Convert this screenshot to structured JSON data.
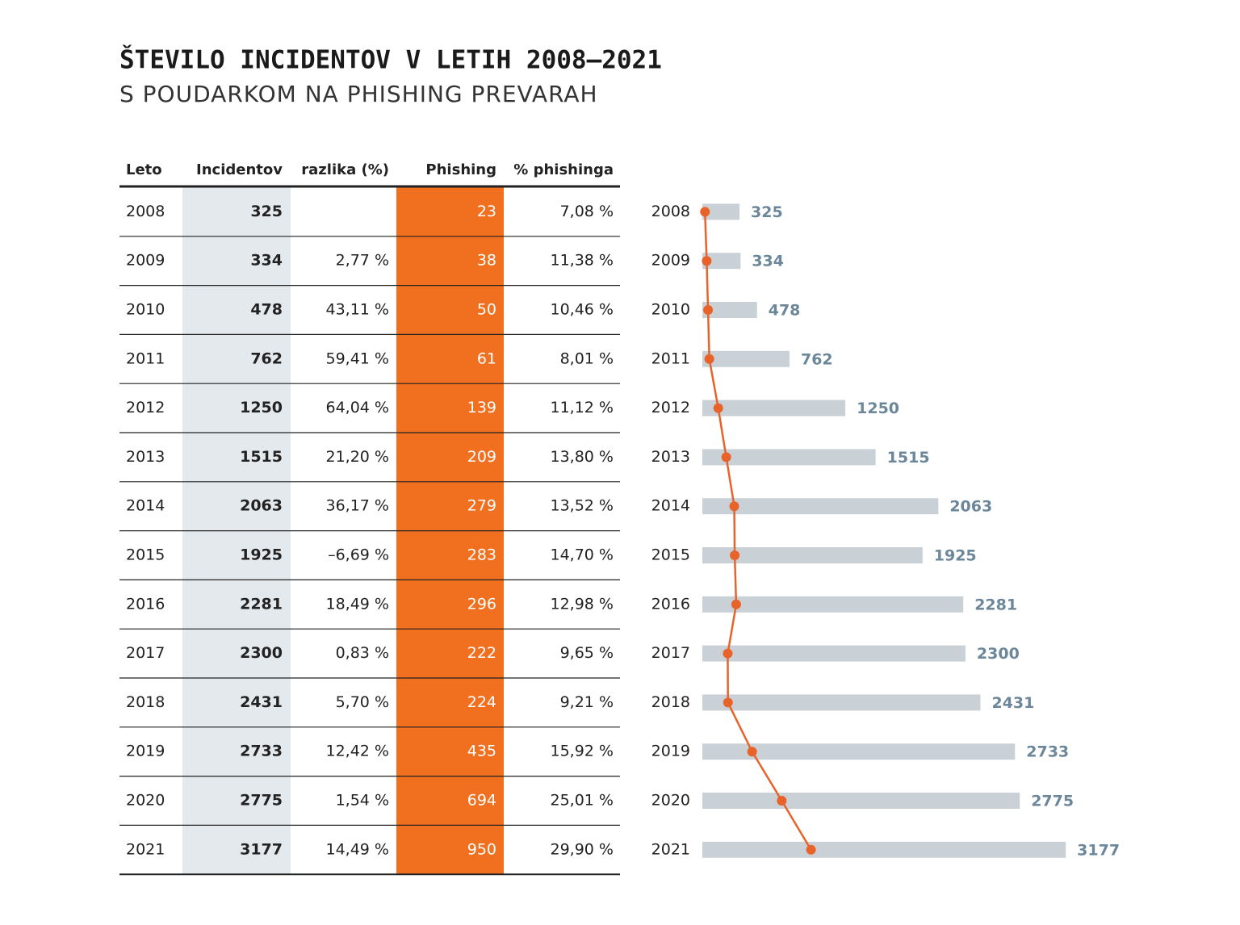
{
  "header": {
    "title": "ŠTEVILO INCIDENTOV V LETIH 2008–2021",
    "subtitle": "S POUDARKOM NA PHISHING PREVARAH"
  },
  "table": {
    "columns": [
      "Leto",
      "Incidentov",
      "razlika (%)",
      "Phishing",
      "% phishinga"
    ],
    "rows": [
      [
        "2008",
        "325",
        null,
        "23",
        "7,08 %"
      ],
      [
        "2009",
        "334",
        "2,77 %",
        "38",
        "11,38 %"
      ],
      [
        "2010",
        "478",
        "43,11 %",
        "50",
        "10,46 %"
      ],
      [
        "2011",
        "762",
        "59,41 %",
        "61",
        "8,01 %"
      ],
      [
        "2012",
        "1250",
        "64,04 %",
        "139",
        "11,12 %"
      ],
      [
        "2013",
        "1515",
        "21,20 %",
        "209",
        "13,80 %"
      ],
      [
        "2014",
        "2063",
        "36,17 %",
        "279",
        "13,52 %"
      ],
      [
        "2015",
        "1925",
        "–6,69 %",
        "283",
        "14,70 %"
      ],
      [
        "2016",
        "2281",
        "18,49 %",
        "296",
        "12,98 %"
      ],
      [
        "2017",
        "2300",
        "0,83 %",
        "222",
        "9,65 %"
      ],
      [
        "2018",
        "2431",
        "5,70 %",
        "224",
        "9,21 %"
      ],
      [
        "2019",
        "2733",
        "12,42 %",
        "435",
        "15,92 %"
      ],
      [
        "2020",
        "2775",
        "1,54 %",
        "694",
        "25,01 %"
      ],
      [
        "2021",
        "3177",
        "14,49 %",
        "950",
        "29,90 %"
      ]
    ]
  },
  "chart_data": {
    "type": "bar",
    "categories": [
      "2008",
      "2009",
      "2010",
      "2011",
      "2012",
      "2013",
      "2014",
      "2015",
      "2016",
      "2017",
      "2018",
      "2019",
      "2020",
      "2021"
    ],
    "series": [
      {
        "color": "#c9d1d7",
        "label_color": "#6b8799",
        "values": [
          325,
          334,
          478,
          762,
          1250,
          1515,
          2063,
          1925,
          2281,
          2300,
          2431,
          2733,
          2775,
          3177
        ]
      },
      {
        "type": "line",
        "color": "#e8632a",
        "values": [
          23,
          38,
          50,
          61,
          139,
          209,
          279,
          283,
          296,
          222,
          224,
          435,
          694,
          950
        ]
      }
    ]
  }
}
